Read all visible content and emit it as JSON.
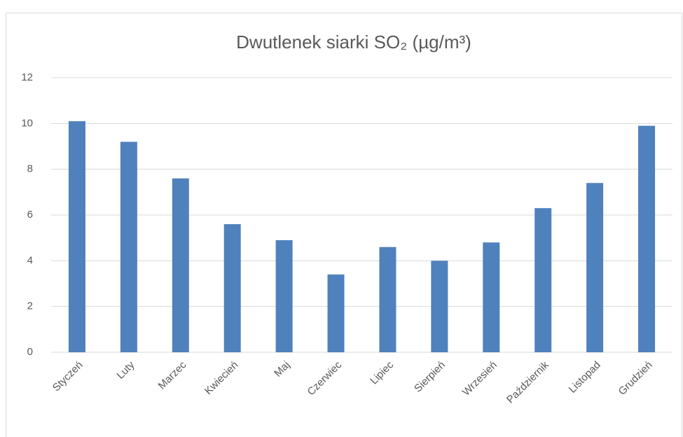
{
  "chart_data": {
    "type": "bar",
    "title": "Dwutlenek siarki SO₂ (µg/m³)",
    "categories": [
      "Styczeń",
      "Luty",
      "Marzec",
      "Kwiecień",
      "Maj",
      "Czerwiec",
      "Lipiec",
      "Sierpień",
      "Wrzesień",
      "Październik",
      "Listopad",
      "Grudzień"
    ],
    "values": [
      10.1,
      9.2,
      7.6,
      5.6,
      4.9,
      3.4,
      4.6,
      4.0,
      4.8,
      6.3,
      7.4,
      9.9
    ],
    "color": "#4f81bd",
    "ylim": [
      0,
      12
    ],
    "yticks": [
      0,
      2,
      4,
      6,
      8,
      10,
      12
    ],
    "grid": true
  }
}
